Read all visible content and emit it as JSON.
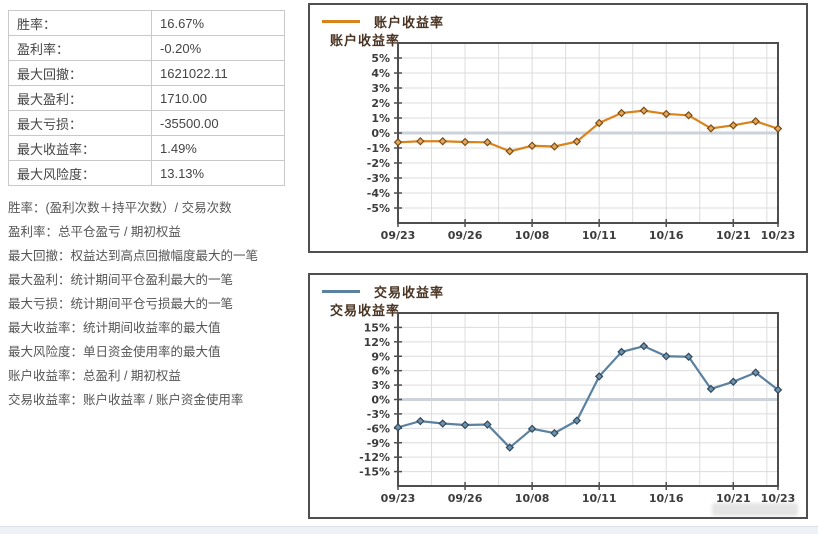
{
  "stats_table": {
    "rows": [
      {
        "label": "胜率：",
        "value": "16.67%"
      },
      {
        "label": "盈利率：",
        "value": "-0.20%"
      },
      {
        "label": "最大回撤：",
        "value": "1621022.11"
      },
      {
        "label": "最大盈利：",
        "value": "1710.00"
      },
      {
        "label": "最大亏损：",
        "value": "-35500.00"
      },
      {
        "label": "最大收益率：",
        "value": "1.49%"
      },
      {
        "label": "最大风险度：",
        "value": "13.13%"
      }
    ]
  },
  "definitions": [
    "胜率：(盈利次数＋持平次数）/ 交易次数",
    "盈利率：总平仓盈亏 / 期初权益",
    "最大回撤：权益达到高点回撤幅度最大的一笔",
    "最大盈利：统计期间平仓盈利最大的一笔",
    "最大亏损：统计期间平仓亏损最大的一笔",
    "最大收益率：统计期间收益率的最大值",
    "最大风险度：单日资金使用率的最大值",
    "账户收益率：总盈利 / 期初权益",
    "交易收益率：账户收益率 / 账户资金使用率"
  ],
  "colors": {
    "account_line": "#d9831c",
    "trade_line": "#5b81a0",
    "grid": "#dcdcdc",
    "zero_line": "#ccd3da",
    "plot_border": "#4e4e4e",
    "heading_text": "#4a3423"
  },
  "chart_data": [
    {
      "type": "line",
      "name": "account-return",
      "title": "账户收益率",
      "legend": "账户收益率",
      "values": [
        -0.62,
        -0.55,
        -0.55,
        -0.6,
        -0.62,
        -1.22,
        -0.85,
        -0.9,
        -0.57,
        0.67,
        1.33,
        1.49,
        1.27,
        1.18,
        0.31,
        0.51,
        0.78,
        0.29
      ],
      "x_tick_labels": [
        "09/23",
        "09/26",
        "10/08",
        "10/11",
        "10/16",
        "10/21",
        "10/23"
      ],
      "x_tick_indices": [
        0,
        3,
        6,
        9,
        12,
        15,
        17
      ],
      "y_ticks": [
        {
          "v": 5,
          "label": "5%"
        },
        {
          "v": 4,
          "label": "4%"
        },
        {
          "v": 3,
          "label": "3%"
        },
        {
          "v": 2,
          "label": "2%"
        },
        {
          "v": 1,
          "label": "1%"
        },
        {
          "v": 0,
          "label": "0%"
        },
        {
          "v": -1,
          "label": "-1%"
        },
        {
          "v": -2,
          "label": "-2%"
        },
        {
          "v": -3,
          "label": "-3%"
        },
        {
          "v": -4,
          "label": "-4%"
        },
        {
          "v": -5,
          "label": "-5%"
        }
      ],
      "ylim": [
        -6,
        6
      ],
      "grid": true,
      "legend_position": "top-left",
      "line_color": "#d9831c",
      "marker_fill": "#e2a95e",
      "marker_stroke": "#7d4b12"
    },
    {
      "type": "line",
      "name": "trade-return",
      "title": "交易收益率",
      "legend": "交易收益率",
      "values": [
        -5.8,
        -4.5,
        -5.0,
        -5.3,
        -5.2,
        -10.0,
        -6.1,
        -7.0,
        -4.4,
        4.8,
        9.9,
        11.1,
        9.0,
        8.9,
        2.2,
        3.7,
        5.6,
        2.0
      ],
      "x_tick_labels": [
        "09/23",
        "09/26",
        "10/08",
        "10/11",
        "10/16",
        "10/21",
        "10/23"
      ],
      "x_tick_indices": [
        0,
        3,
        6,
        9,
        12,
        15,
        17
      ],
      "y_ticks": [
        {
          "v": 15,
          "label": "15%"
        },
        {
          "v": 12,
          "label": "12%"
        },
        {
          "v": 9,
          "label": "9%"
        },
        {
          "v": 6,
          "label": "6%"
        },
        {
          "v": 3,
          "label": "3%"
        },
        {
          "v": 0,
          "label": "0%"
        },
        {
          "v": -3,
          "label": "-3%"
        },
        {
          "v": -6,
          "label": "-6%"
        },
        {
          "v": -9,
          "label": "-9%"
        },
        {
          "v": -12,
          "label": "-12%"
        },
        {
          "v": -15,
          "label": "-15%"
        }
      ],
      "ylim": [
        -18,
        18
      ],
      "grid": true,
      "legend_position": "top-left",
      "line_color": "#5b81a0",
      "marker_fill": "#6f93ad",
      "marker_stroke": "#32495d"
    }
  ]
}
